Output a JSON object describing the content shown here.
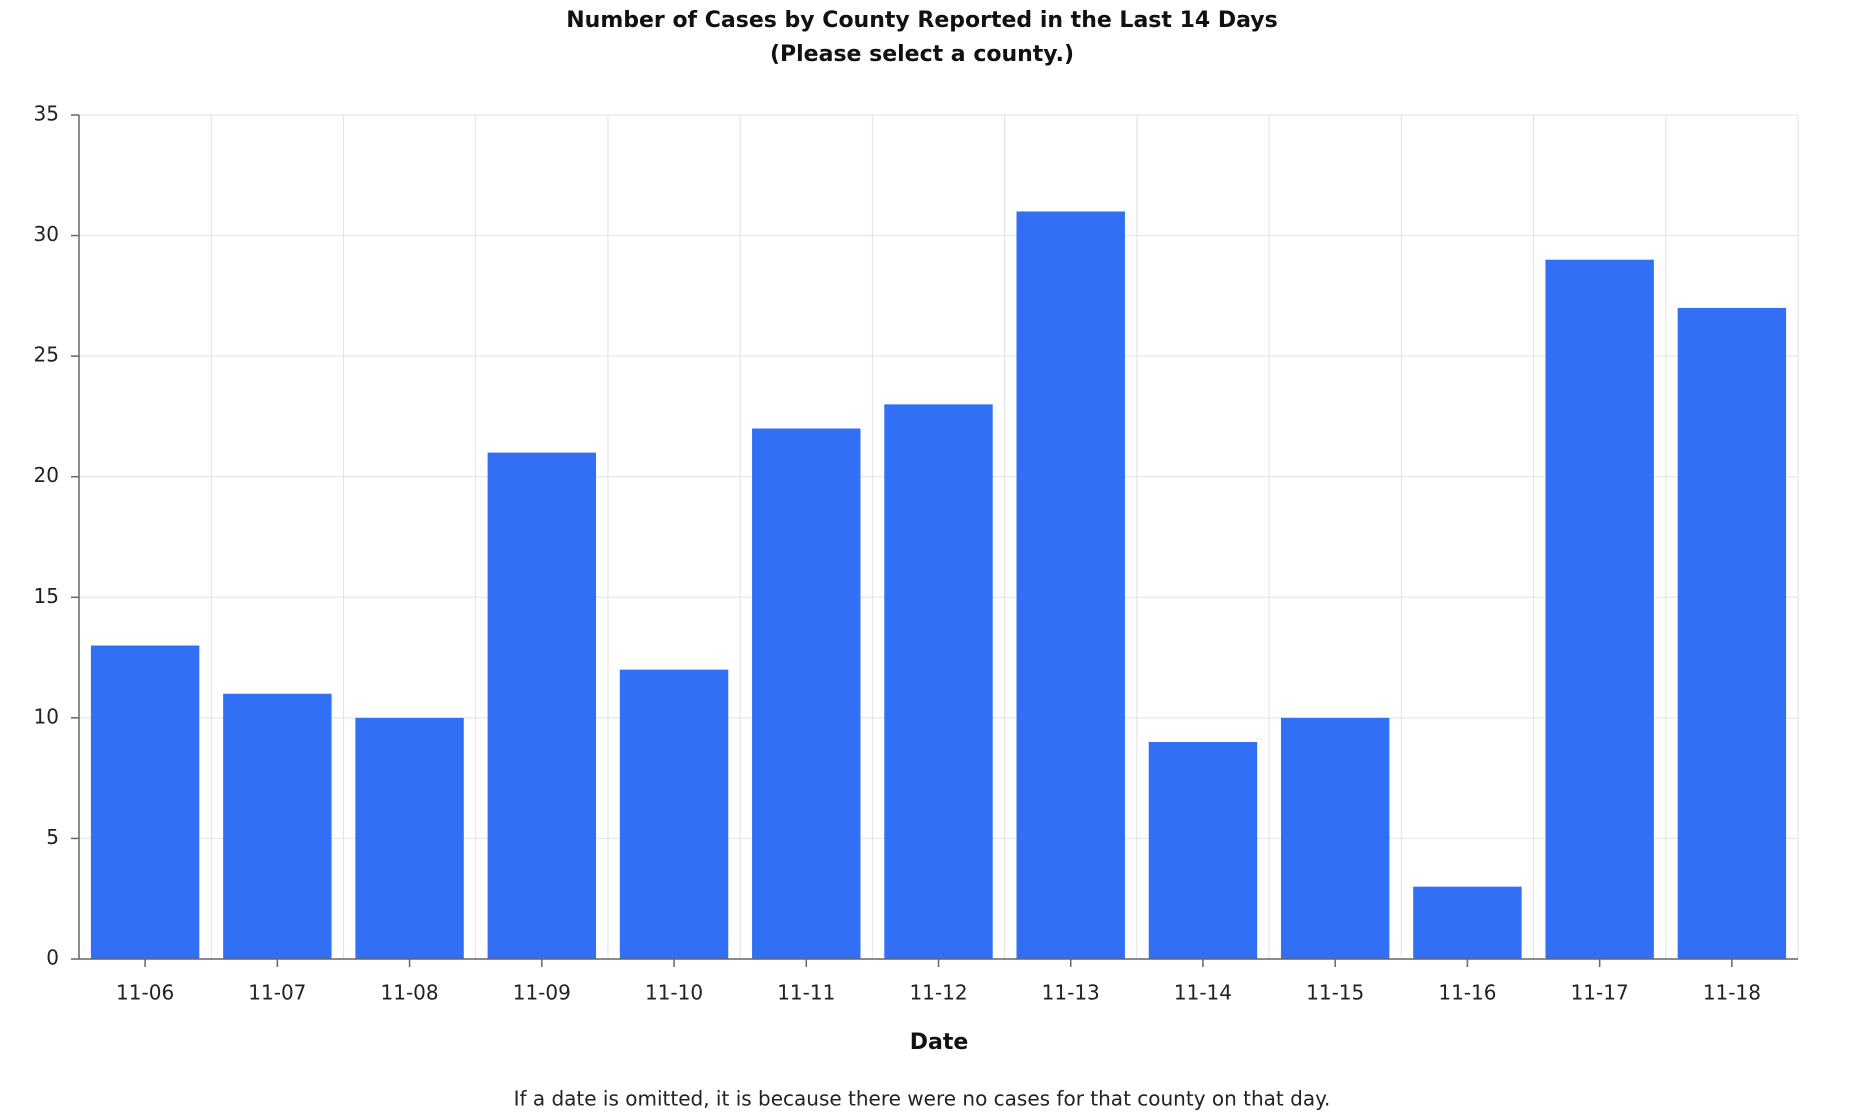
{
  "chart_data": {
    "type": "bar",
    "title": "Number of Cases by County Reported in the Last 14 Days",
    "subtitle": "(Please select a county.)",
    "x_label": "Date",
    "note": "If a date is omitted, it is because there were no cases for that county on that day.",
    "categories": [
      "11-06",
      "11-07",
      "11-08",
      "11-09",
      "11-10",
      "11-11",
      "11-12",
      "11-13",
      "11-14",
      "11-15",
      "11-16",
      "11-17",
      "11-18"
    ],
    "values": [
      13,
      11,
      10,
      21,
      12,
      22,
      23,
      31,
      9,
      10,
      3,
      29,
      27
    ],
    "color": "#3170f5",
    "ylim": [
      0,
      35
    ],
    "yticks": [
      0,
      5,
      10,
      15,
      20,
      25,
      30,
      35
    ],
    "grid": true
  }
}
